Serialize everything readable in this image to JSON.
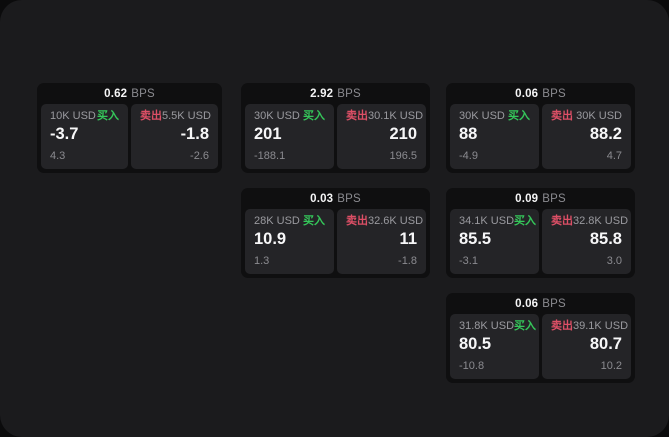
{
  "labels": {
    "buy": "买入",
    "sell": "卖出",
    "bps_unit": "BPS"
  },
  "colors": {
    "surface": "#1b1b1d",
    "card_background": "#0f0f10",
    "panel_background": "#242427",
    "buy_green": "#35c75a",
    "sell_red": "#dd4f66",
    "text_primary": "#f7f7f8",
    "text_secondary": "#8b8b90"
  },
  "cards": [
    {
      "row": 0,
      "col": 0,
      "bps": "0.62",
      "buy": {
        "size": "10K USD",
        "price": "-3.7",
        "delta": "4.3"
      },
      "sell": {
        "size": "5.5K USD",
        "price": "-1.8",
        "delta": "-2.6"
      }
    },
    {
      "row": 0,
      "col": 1,
      "bps": "2.92",
      "buy": {
        "size": "30K USD",
        "price": "201",
        "delta": "-188.1"
      },
      "sell": {
        "size": "30.1K USD",
        "price": "210",
        "delta": "196.5"
      }
    },
    {
      "row": 0,
      "col": 2,
      "bps": "0.06",
      "buy": {
        "size": "30K USD",
        "price": "88",
        "delta": "-4.9"
      },
      "sell": {
        "size": "30K USD",
        "price": "88.2",
        "delta": "4.7"
      }
    },
    {
      "row": 1,
      "col": 1,
      "bps": "0.03",
      "buy": {
        "size": "28K USD",
        "price": "10.9",
        "delta": "1.3"
      },
      "sell": {
        "size": "32.6K USD",
        "price": "11",
        "delta": "-1.8"
      }
    },
    {
      "row": 1,
      "col": 2,
      "bps": "0.09",
      "buy": {
        "size": "34.1K USD",
        "price": "85.5",
        "delta": "-3.1"
      },
      "sell": {
        "size": "32.8K USD",
        "price": "85.8",
        "delta": "3.0"
      }
    },
    {
      "row": 2,
      "col": 2,
      "bps": "0.06",
      "buy": {
        "size": "31.8K USD",
        "price": "80.5",
        "delta": "-10.8"
      },
      "sell": {
        "size": "39.1K USD",
        "price": "80.7",
        "delta": "10.2"
      }
    }
  ]
}
